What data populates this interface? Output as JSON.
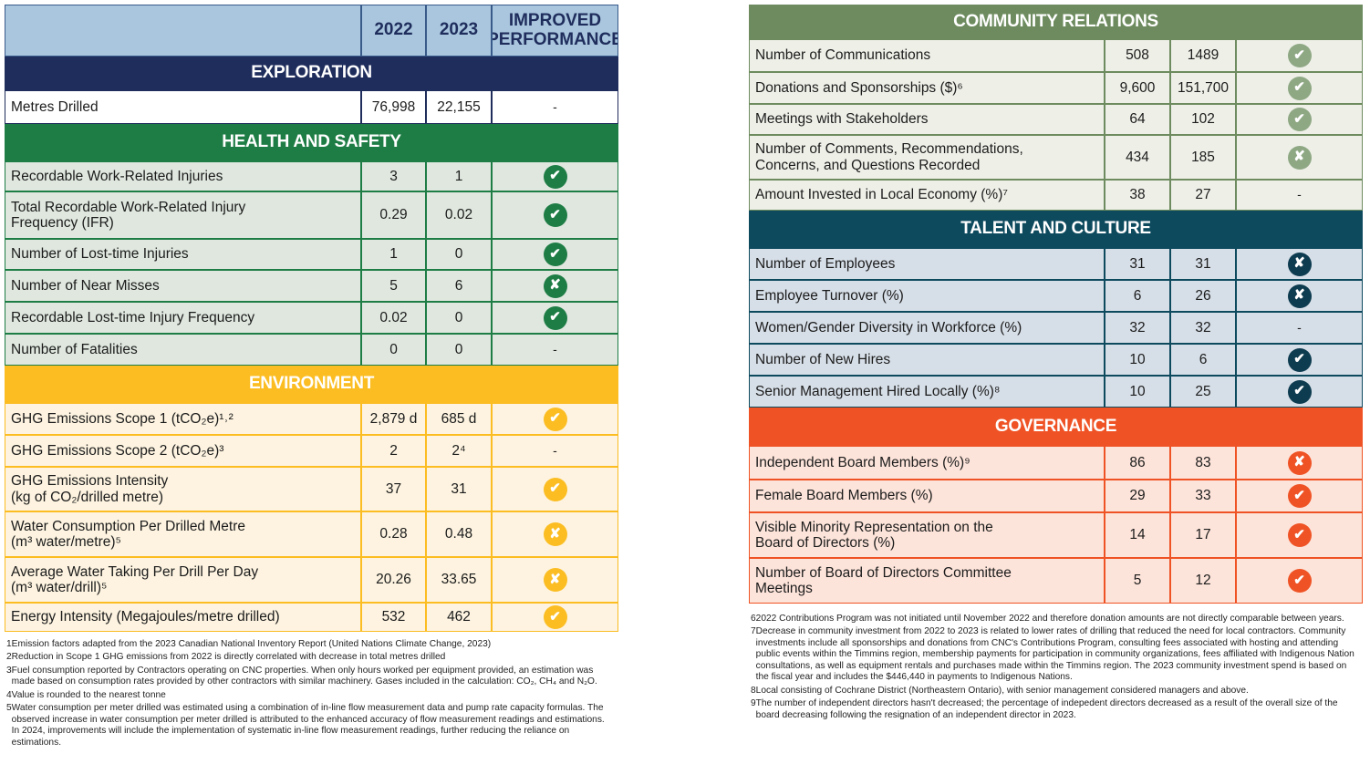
{
  "left": {
    "header": {
      "year1": "2022",
      "year2": "2023",
      "status": "IMPROVED PERFORMANCE"
    },
    "sections": [
      {
        "title": "EXPLORATION",
        "rows": [
          [
            "Metres Drilled",
            "76,998",
            "22,155",
            "-"
          ]
        ]
      },
      {
        "title": "HEALTH AND SAFETY",
        "rows": [
          [
            "Recordable Work-Related Injuries",
            "3",
            "1",
            "✔"
          ],
          [
            "Total Recordable Work-Related Injury\nFrequency (IFR)",
            "0.29",
            "0.02",
            "✔"
          ],
          [
            "Number of Lost-time Injuries",
            "1",
            "0",
            "✔"
          ],
          [
            "Number of Near Misses",
            "5",
            "6",
            "✘"
          ],
          [
            "Recordable Lost-time Injury Frequency",
            "0.02",
            "0",
            "✔"
          ],
          [
            "Number of Fatalities",
            "0",
            "0",
            "-"
          ]
        ]
      },
      {
        "title": "ENVIRONMENT",
        "rows": [
          [
            "GHG Emissions Scope 1 (tCO₂e)¹˒²",
            "2,879 d",
            "685 d",
            "✔"
          ],
          [
            "GHG Emissions Scope 2 (tCO₂e)³",
            "2",
            "2⁴",
            "-"
          ],
          [
            "GHG Emissions Intensity\n(kg of CO₂/drilled metre)",
            "37",
            "31",
            "✔"
          ],
          [
            "Water Consumption Per Drilled Metre\n(m³ water/metre)⁵",
            "0.28",
            "0.48",
            "✘"
          ],
          [
            "Average Water Taking Per Drill Per Day\n(m³ water/drill)⁵",
            "20.26",
            "33.65",
            "✘"
          ],
          [
            "Energy Intensity (Megajoules/metre drilled)",
            "532",
            "462",
            "✔"
          ]
        ]
      }
    ],
    "footnotes": [
      {
        "mark": "1",
        "text": "Emission factors adapted from the 2023 Canadian National Inventory Report (United Nations Climate Change, 2023)"
      },
      {
        "mark": "2",
        "text": "Reduction in Scope 1 GHG emissions from 2022 is directly correlated with decrease in total metres drilled"
      },
      {
        "mark": "3",
        "text": "Fuel consumption reported by Contractors operating on CNC properties. When only hours worked per equipment provided, an estimation was made based on consumption rates provided by other contractors with similar machinery. Gases included in the calculation: CO₂, CH₄ and N₂O."
      },
      {
        "mark": "4",
        "text": "Value is rounded to the nearest tonne"
      },
      {
        "mark": "5",
        "text": "Water consumption per meter drilled was estimated using a combination of in-line flow measurement data and pump rate capacity formulas. The observed increase in water consumption per meter drilled is attributed to the enhanced accuracy of flow measurement readings and estimations. In 2024, improvements will include the implementation of systematic in-line flow measurement readings, further reducing the reliance on estimations."
      }
    ]
  },
  "right": {
    "sections": [
      {
        "title": "COMMUNITY RELATIONS",
        "rows": [
          [
            "Number of Communications",
            "508",
            "1489",
            "✔"
          ],
          [
            "Donations and Sponsorships ($)⁶",
            "9,600",
            "151,700",
            "✔"
          ],
          [
            "Meetings with Stakeholders",
            "64",
            "102",
            "✔"
          ],
          [
            "Number of Comments, Recommendations,\nConcerns, and Questions Recorded",
            "434",
            "185",
            "✘"
          ],
          [
            "Amount Invested in Local Economy (%)⁷",
            "38",
            "27",
            "-"
          ]
        ]
      },
      {
        "title": "TALENT AND CULTURE",
        "rows": [
          [
            "Number of Employees",
            "31",
            "31",
            "✘"
          ],
          [
            "Employee Turnover (%)",
            "6",
            "26",
            "✘"
          ],
          [
            "Women/Gender Diversity in Workforce (%)",
            "32",
            "32",
            "-"
          ],
          [
            "Number of New Hires",
            "10",
            "6",
            "✔"
          ],
          [
            "Senior Management Hired Locally (%)⁸",
            "10",
            "25",
            "✔"
          ]
        ]
      },
      {
        "title": "GOVERNANCE",
        "rows": [
          [
            "Independent Board Members (%)⁹",
            "86",
            "83",
            "✘"
          ],
          [
            "Female Board Members (%)",
            "29",
            "33",
            "✔"
          ],
          [
            "Visible Minority Representation on the\nBoard of Directors (%)",
            "14",
            "17",
            "✔"
          ],
          [
            "Number of Board of Directors Committee\nMeetings",
            "5",
            "12",
            "✔"
          ]
        ]
      }
    ],
    "footnotes": [
      {
        "mark": "6",
        "text": "2022 Contributions Program was not initiated until November 2022 and therefore donation amounts are not directly comparable between years."
      },
      {
        "mark": "7",
        "text": "Decrease in community investment from 2022 to 2023 is related to lower rates of drilling that reduced the need for local contractors. Community investments include all sponsorships and donations from CNC's Contributions Program, consulting fees associated with hosting and attending public events within the Timmins region, membership payments for participation in community organizations, fees affiliated with Indigenous Nation consultations, as well as equipment rentals and purchases made within the Timmins region. The 2023 community investment spend is based on the fiscal year and includes the $446,440 in payments to Indigenous Nations."
      },
      {
        "mark": "8",
        "text": "Local consisting of Cochrane District (Northeastern Ontario), with senior management considered managers and above."
      },
      {
        "mark": "9",
        "text": "The number of independent directors hasn't decreased; the percentage of indepedent directors decreased as a result of the overall size of the board decreasing following the resignation of an independent director in 2023."
      }
    ]
  }
}
